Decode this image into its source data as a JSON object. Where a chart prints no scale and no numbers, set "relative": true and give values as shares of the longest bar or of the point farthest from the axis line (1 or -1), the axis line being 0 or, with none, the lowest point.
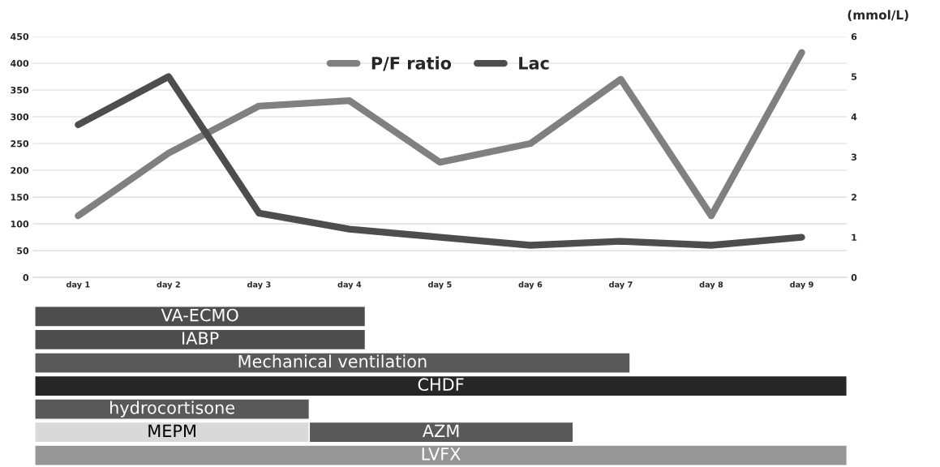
{
  "chart_data": [
    {
      "type": "line",
      "categories": [
        "day 1",
        "day 2",
        "day 3",
        "day 4",
        "day 5",
        "day 6",
        "day 7",
        "day 8",
        "day 9"
      ],
      "series": [
        {
          "name": "P/F ratio",
          "color": "#808080",
          "values": [
            115,
            232,
            320,
            330,
            215,
            250,
            370,
            115,
            420
          ]
        },
        {
          "name": "Lac",
          "color": "#4d4d4d",
          "axis": "y2",
          "values": [
            3.8,
            5.0,
            1.6,
            1.2,
            1.0,
            0.8,
            0.9,
            0.8,
            1.0
          ]
        }
      ],
      "ylim": [
        0,
        450
      ],
      "yticks": [
        0,
        50,
        100,
        150,
        200,
        250,
        300,
        350,
        400,
        450
      ],
      "y2lim": [
        0,
        6
      ],
      "y2ticks": [
        0,
        1,
        2,
        3,
        4,
        5,
        6
      ],
      "y2label": "(mmol/L)",
      "grid": "y",
      "legend": "top",
      "marker": "none"
    },
    {
      "type": "bar",
      "orientation": "horizontal",
      "relative": true,
      "stacked": true,
      "categories": [
        "VA-ECMO",
        "IABP",
        "Mechanical ventilation",
        "CHDF",
        "hydrocortisone",
        "MEPM",
        "LVFX"
      ],
      "series": [
        {
          "colors": [
            "#4d4d4d",
            "#4d4d4d",
            "#595959",
            "#262626",
            "#595959",
            "#d9d9d9",
            "#969696"
          ],
          "values": [
            0.407,
            0.407,
            0.733,
            1.0,
            0.338,
            0.338,
            1.0
          ]
        },
        {
          "name": "AZM",
          "color": "#595959",
          "values": [
            null,
            null,
            null,
            null,
            null,
            0.325,
            null
          ]
        }
      ]
    }
  ]
}
